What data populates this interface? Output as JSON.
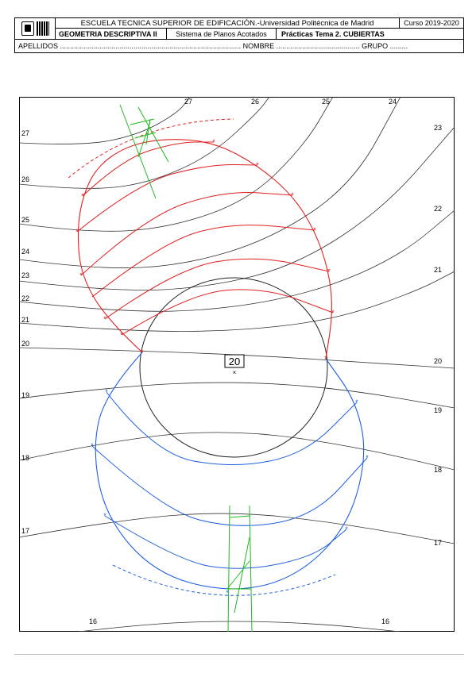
{
  "header": {
    "school": "ESCUELA TECNICA SUPERIOR DE EDIFICACIÓN.-Universidad Politécnica de Madrid",
    "year": "Curso 2019-2020",
    "subject": "GEOMETRIA DESCRIPTIVA II",
    "system": "Sistema de Planos Acotados",
    "practice": "Prácticas Tema 2. CUBIERTAS",
    "names_line": "APELLIDOS ........................................................................................... NOMBRE .......................................... GRUPO ........."
  },
  "drawing": {
    "center_label": "20",
    "contour_labels": {
      "top": [
        "27",
        "26",
        "25",
        "24"
      ],
      "right": [
        "23",
        "22",
        "21",
        "20",
        "19",
        "18",
        "17"
      ],
      "left": [
        "27",
        "26",
        "25",
        "24",
        "23",
        "22",
        "21",
        "20",
        "19",
        "18",
        "17"
      ],
      "bottom": [
        "16",
        "16"
      ]
    },
    "colors": {
      "terrain": "#333333",
      "upper_cone": "#e02020",
      "lower_cone": "#2060e0",
      "construction": "#1fb81f",
      "circle": "#222222"
    }
  }
}
